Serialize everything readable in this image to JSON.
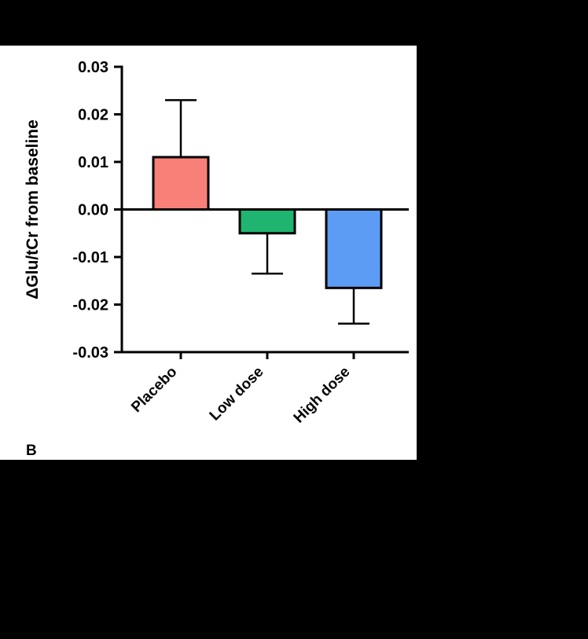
{
  "panel_label": "B",
  "colors": {
    "background": "#000000",
    "panel": "#ffffff",
    "axis": "#000000"
  },
  "chart_data": {
    "type": "bar",
    "title": "",
    "xlabel": "",
    "ylabel": "ΔGlu/tCr from baseline",
    "categories": [
      "Placebo",
      "Low dose",
      "High dose"
    ],
    "values": [
      0.011,
      -0.005,
      -0.0165
    ],
    "error_tips": [
      0.023,
      -0.0135,
      -0.024
    ],
    "bar_colors": [
      "#F98078",
      "#1FB571",
      "#5C9CF5"
    ],
    "ylim": [
      -0.03,
      0.03
    ],
    "yticks": [
      0.03,
      0.02,
      0.01,
      0,
      -0.01,
      -0.02,
      -0.03
    ],
    "ytick_labels": [
      "0.03",
      "0.02",
      "0.01",
      "0.00",
      "-0.01",
      "-0.02",
      "-0.03"
    ],
    "grid": false,
    "legend": "none",
    "baseline": 0
  }
}
